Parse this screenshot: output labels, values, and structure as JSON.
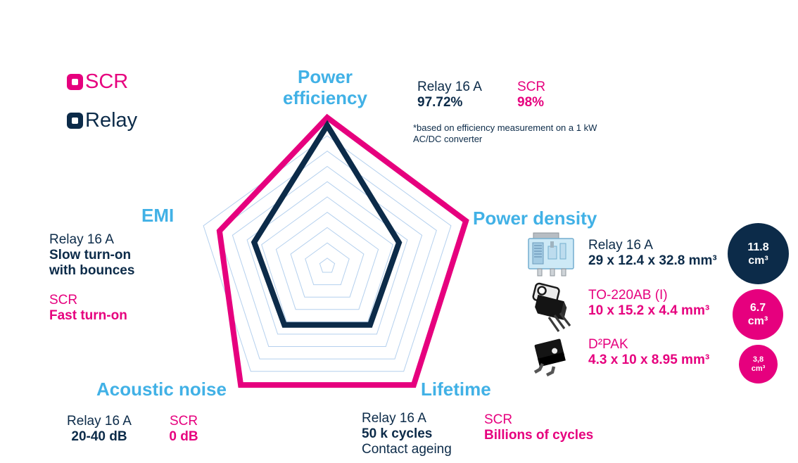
{
  "colors": {
    "scr": "#E6007E",
    "relay": "#0C2B49",
    "accent": "#41B1E6",
    "grid": "#B4D0EE"
  },
  "legend": {
    "scr_label": "SCR",
    "relay_label": "Relay"
  },
  "chart_data": {
    "type": "radar",
    "axes": [
      "Power efficiency",
      "Power density",
      "Lifetime",
      "Acoustic noise",
      "EMI"
    ],
    "rings": 9,
    "grid_style": "concentric pentagons, no radial spokes",
    "values_unit": "fraction of outer grid ring (visual estimate)",
    "legend_position": "top-left",
    "series": [
      {
        "name": "SCR",
        "color": "#E6007E",
        "values": [
          1.14,
          1.12,
          1.13,
          1.13,
          0.87
        ]
      },
      {
        "name": "Relay",
        "color": "#0C2B49",
        "values": [
          1.08,
          0.58,
          0.56,
          0.56,
          0.59
        ]
      }
    ]
  },
  "sections": {
    "power_efficiency": {
      "title": "Power\nefficiency",
      "relay_label": "Relay 16 A",
      "relay_value": "97.72%",
      "scr_label": "SCR",
      "scr_value": "98%",
      "footnote": "*based on efficiency measurement on a 1 kW\nAC/DC converter"
    },
    "power_density": {
      "title": "Power density",
      "items": [
        {
          "icon": "relay-component-icon",
          "label": "Relay 16 A",
          "dims": "29 x 12.4 x 32.8 mm³",
          "volume": "11.8\ncm³"
        },
        {
          "icon": "to220-package-icon",
          "label": "TO-220AB (I)",
          "dims": "10 x 15.2 x 4.4 mm³",
          "volume": "6.7\ncm³"
        },
        {
          "icon": "d2pak-package-icon",
          "label": "D²PAK",
          "dims": "4.3 x 10 x 8.95 mm³",
          "volume": "3,8\ncm³"
        }
      ]
    },
    "emi": {
      "title": "EMI",
      "relay_label": "Relay 16 A",
      "relay_value": "Slow turn-on\nwith bounces",
      "scr_label": "SCR",
      "scr_value": "Fast turn-on"
    },
    "acoustic": {
      "title": "Acoustic noise",
      "relay_label": "Relay 16 A",
      "relay_value": "20-40 dB",
      "scr_label": "SCR",
      "scr_value": "0 dB"
    },
    "lifetime": {
      "title": "Lifetime",
      "relay_label": "Relay 16 A",
      "relay_value": "50 k cycles",
      "relay_note": "Contact ageing",
      "scr_label": "SCR",
      "scr_value": "Billions of cycles"
    }
  }
}
